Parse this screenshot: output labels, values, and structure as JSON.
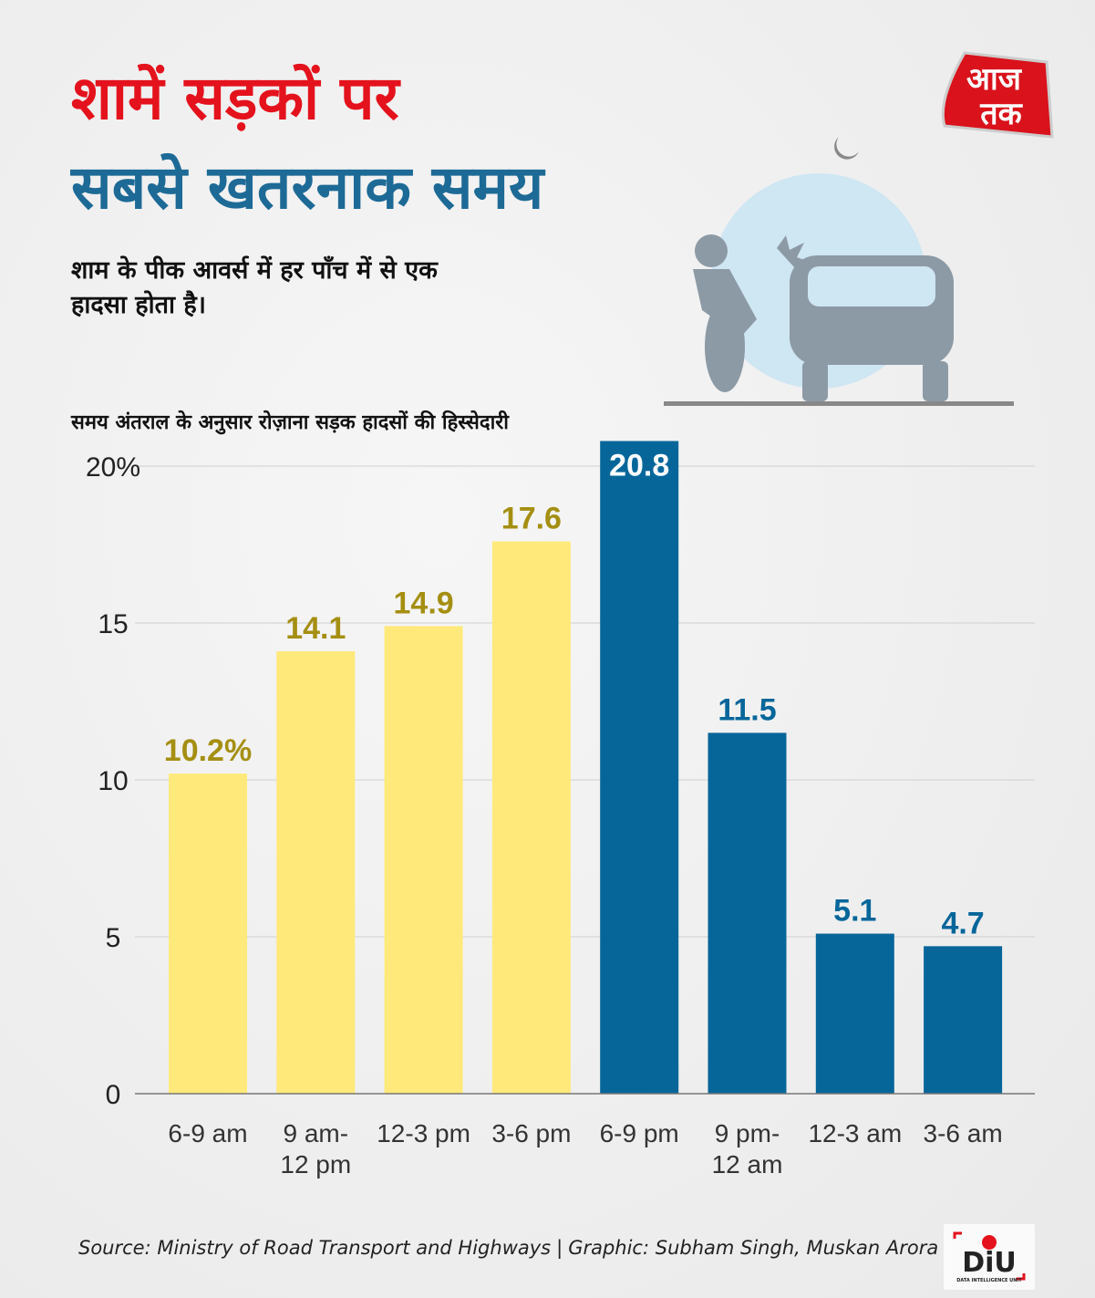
{
  "title_line1": "शामें सड़कों पर",
  "title_line2": "सबसे खतरनाक समय",
  "subtitle": "शाम के पीक आवर्स में हर पाँच में से एक हादसा होता है।",
  "logos": {
    "top": "आज तक",
    "bottom": "DiU",
    "bottom_sub": "DATA INTELLIGENCE UNIT"
  },
  "footer": {
    "source": "Source: Ministry of Road Transport and Highways",
    "separator": "|",
    "graphic": "Graphic: Subham Singh, Muskan Arora"
  },
  "colors": {
    "yellow": "#ffe97a",
    "blue": "#06669a",
    "label_yellow": "#a58f12",
    "label_blue": "#06669a",
    "red": "#e4121c"
  },
  "chart_data": {
    "type": "bar",
    "title": "समय अंतराल के अनुसार रोज़ाना सड़क हादसों की हिस्सेदारी",
    "xlabel": "",
    "ylabel": "",
    "ylim": [
      0,
      21
    ],
    "yticks": [
      0,
      5,
      10,
      15,
      20
    ],
    "ytick_labels": [
      "0",
      "5",
      "10",
      "15",
      "20%"
    ],
    "grid": true,
    "categories": [
      [
        "6-9 am"
      ],
      [
        "9 am-",
        "12 pm"
      ],
      [
        "12-3 pm"
      ],
      [
        "3-6 pm"
      ],
      [
        "6-9 pm"
      ],
      [
        "9 pm-",
        "12 am"
      ],
      [
        "12-3 am"
      ],
      [
        "3-6 am"
      ]
    ],
    "values": [
      10.2,
      14.1,
      14.9,
      17.6,
      20.8,
      11.5,
      5.1,
      4.7
    ],
    "data_labels": [
      "10.2%",
      "14.1",
      "14.9",
      "17.6",
      "20.8",
      "11.5",
      "5.1",
      "4.7"
    ],
    "bar_colors": [
      "yellow",
      "yellow",
      "yellow",
      "yellow",
      "blue",
      "blue",
      "blue",
      "blue"
    ]
  }
}
